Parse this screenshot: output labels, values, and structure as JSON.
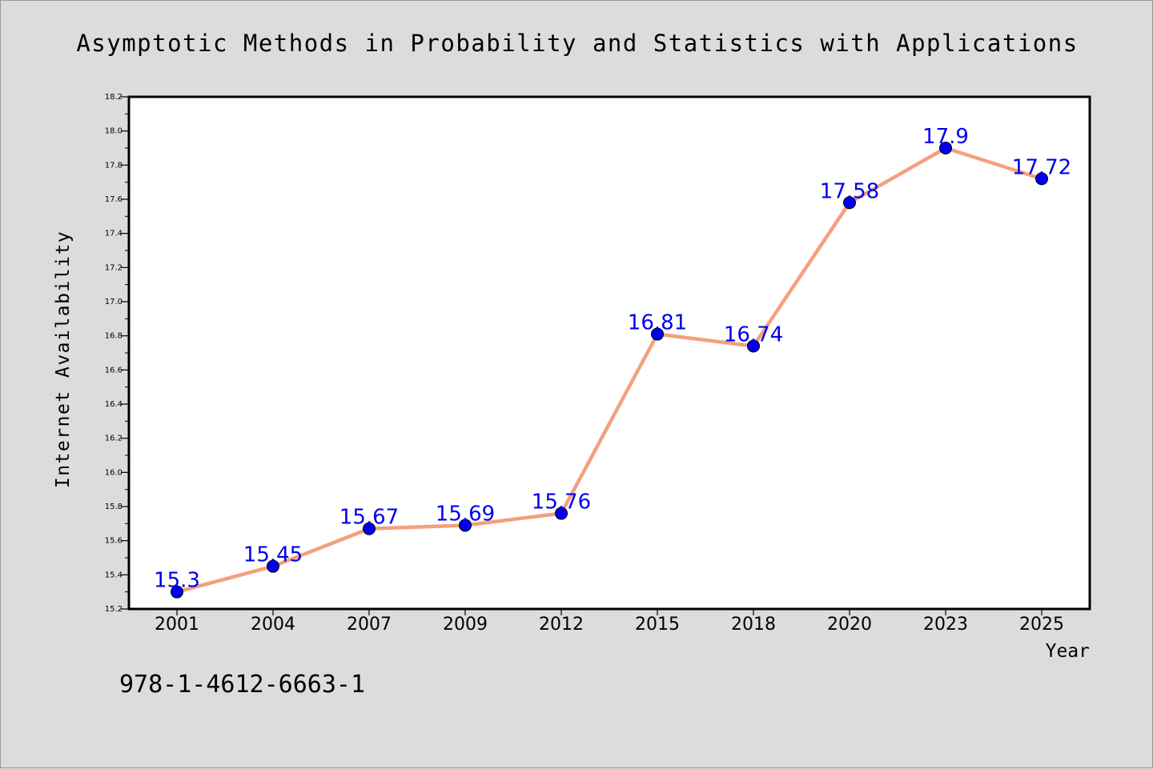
{
  "chart_data": {
    "type": "line",
    "title": "Asymptotic Methods in Probability and Statistics with Applications",
    "xlabel": "Year",
    "ylabel": "Internet Availability",
    "categories": [
      "2001",
      "2004",
      "2007",
      "2009",
      "2012",
      "2015",
      "2018",
      "2020",
      "2023",
      "2025"
    ],
    "series": [
      {
        "values": [
          15.3,
          15.45,
          15.67,
          15.69,
          15.76,
          16.81,
          16.74,
          17.58,
          17.9,
          17.72
        ],
        "data_labels": [
          "15.3",
          "15.45",
          "15.67",
          "15.69",
          "15.76",
          "16.81",
          "16.74",
          "17.58",
          "17.9",
          "17.72"
        ],
        "line_color": "#f4a07e",
        "marker_color": "#0000ee"
      }
    ],
    "ylim": [
      15.2,
      18.2
    ],
    "yticks": [
      "15.2",
      "15.4",
      "15.6",
      "15.8",
      "16.0",
      "16.2",
      "16.4",
      "16.6",
      "16.8",
      "17.0",
      "17.2",
      "17.4",
      "17.6",
      "17.8",
      "18.0",
      "18.2"
    ],
    "grid": false,
    "plot_background": "#ffffff",
    "page_background": "#dcdcdc"
  },
  "footer": {
    "isbn": "978-1-4612-6663-1"
  }
}
